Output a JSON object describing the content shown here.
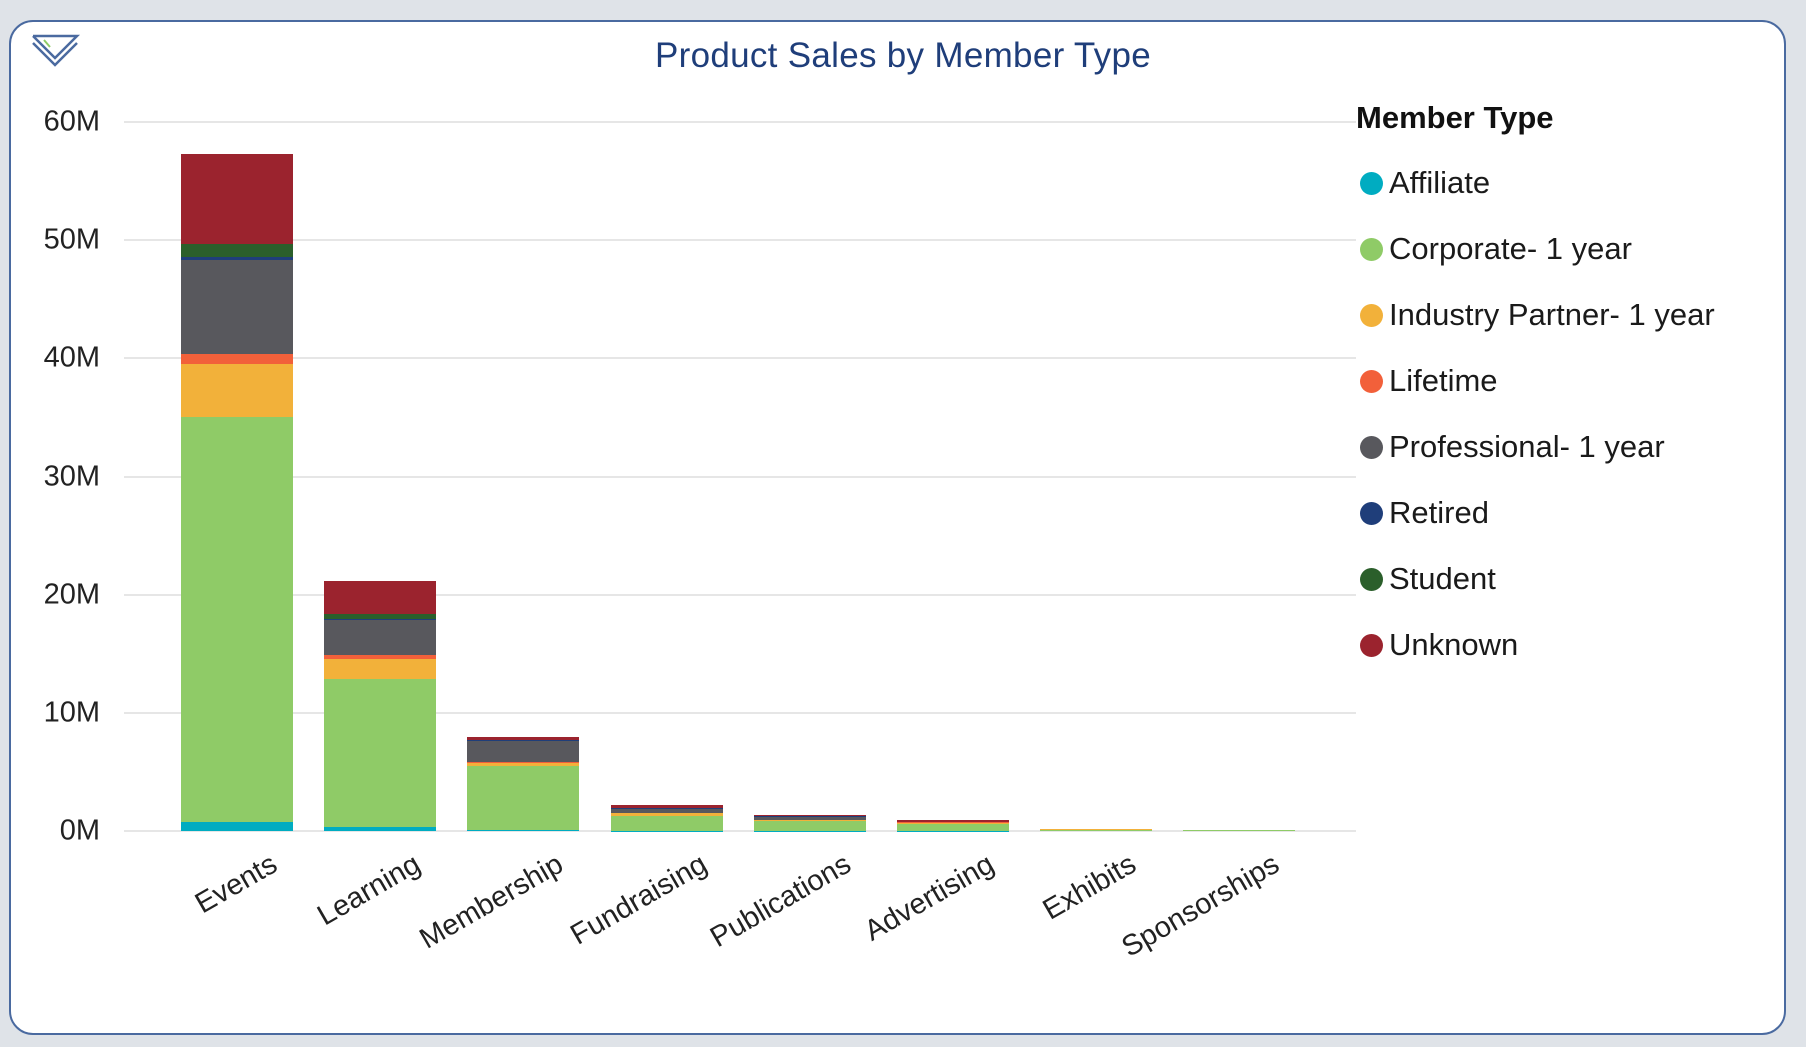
{
  "header": {
    "title": "Product Sales by Member Type"
  },
  "logo": {
    "icon": "double-chevron-down-logo"
  },
  "legend": {
    "title": "Member Type",
    "items": [
      {
        "label": "Affiliate",
        "color": "#00acc1"
      },
      {
        "label": "Corporate- 1 year",
        "color": "#8fcb67"
      },
      {
        "label": "Industry Partner- 1 year",
        "color": "#f2b13a"
      },
      {
        "label": "Lifetime",
        "color": "#f2603a"
      },
      {
        "label": "Professional- 1 year",
        "color": "#58585d"
      },
      {
        "label": "Retired",
        "color": "#1f3e7a"
      },
      {
        "label": "Student",
        "color": "#2b5f2b"
      },
      {
        "label": "Unknown",
        "color": "#9b232e"
      }
    ]
  },
  "yaxis": {
    "ticks": [
      "0M",
      "10M",
      "20M",
      "30M",
      "40M",
      "50M",
      "60M"
    ]
  },
  "chart_data": {
    "type": "bar",
    "stacked": true,
    "title": "Product Sales by Member Type",
    "xlabel": "",
    "ylabel": "",
    "ylim": [
      0,
      60000000
    ],
    "yticks": [
      "0M",
      "10M",
      "20M",
      "30M",
      "40M",
      "50M",
      "60M"
    ],
    "grid": true,
    "legend_position": "right",
    "legend_title": "Member Type",
    "categories": [
      "Events",
      "Learning",
      "Membership",
      "Fundraising",
      "Publications",
      "Advertising",
      "Exhibits",
      "Sponsorships"
    ],
    "series": [
      {
        "name": "Affiliate",
        "color": "#00acc1",
        "values": [
          0.8,
          0.3,
          0.05,
          0.02,
          0.02,
          0.01,
          0.0,
          0.0
        ]
      },
      {
        "name": "Corporate- 1 year",
        "color": "#8fcb67",
        "values": [
          34.2,
          12.6,
          5.45,
          1.28,
          0.83,
          0.55,
          0.12,
          0.08
        ]
      },
      {
        "name": "Industry Partner- 1 year",
        "color": "#f2b13a",
        "values": [
          4.5,
          1.7,
          0.25,
          0.2,
          0.1,
          0.15,
          0.01,
          0.01
        ]
      },
      {
        "name": "Lifetime",
        "color": "#f2603a",
        "values": [
          0.9,
          0.3,
          0.05,
          0.05,
          0.02,
          0.02,
          0.0,
          0.0
        ]
      },
      {
        "name": "Professional- 1 year",
        "color": "#58585d",
        "values": [
          7.9,
          3.0,
          1.85,
          0.35,
          0.25,
          0.05,
          0.01,
          0.01
        ]
      },
      {
        "name": "Retired",
        "color": "#1f3e7a",
        "values": [
          0.3,
          0.05,
          0.02,
          0.01,
          0.01,
          0.0,
          0.0,
          0.0
        ]
      },
      {
        "name": "Student",
        "color": "#2b5f2b",
        "values": [
          1.1,
          0.45,
          0.03,
          0.03,
          0.02,
          0.01,
          0.0,
          0.0
        ]
      },
      {
        "name": "Unknown",
        "color": "#9b232e",
        "values": [
          7.6,
          2.8,
          0.3,
          0.26,
          0.1,
          0.11,
          0.01,
          0.0
        ]
      }
    ],
    "totals": [
      57.3,
      21.2,
      8.0,
      2.2,
      1.35,
      0.9,
      0.15,
      0.1
    ],
    "units": "millions"
  }
}
